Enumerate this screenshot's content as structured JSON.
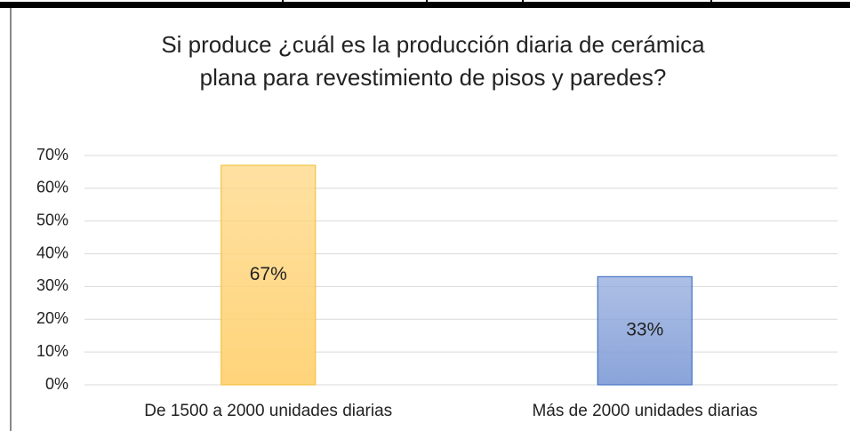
{
  "chart_data": {
    "type": "bar",
    "title": "Si produce ¿cuál es la producción diaria de cerámica plana para revestimiento de pisos y paredes?",
    "categories": [
      "De 1500 a 2000 unidades diarias",
      "Más de 2000 unidades diarias"
    ],
    "values": [
      67,
      33
    ],
    "value_labels": [
      "67%",
      "33%"
    ],
    "colors": [
      "#ffd47a",
      "#8aa4da"
    ],
    "edge_colors": [
      "#f4c242",
      "#4472c4"
    ],
    "ylim": [
      0,
      70
    ],
    "yticks": [
      {
        "value": 0,
        "label": "0%"
      },
      {
        "value": 10,
        "label": "10%"
      },
      {
        "value": 20,
        "label": "20%"
      },
      {
        "value": 30,
        "label": "30%"
      },
      {
        "value": 40,
        "label": "40%"
      },
      {
        "value": 50,
        "label": "50%"
      },
      {
        "value": 60,
        "label": "60%"
      },
      {
        "value": 70,
        "label": "70%"
      }
    ],
    "grid": true
  }
}
